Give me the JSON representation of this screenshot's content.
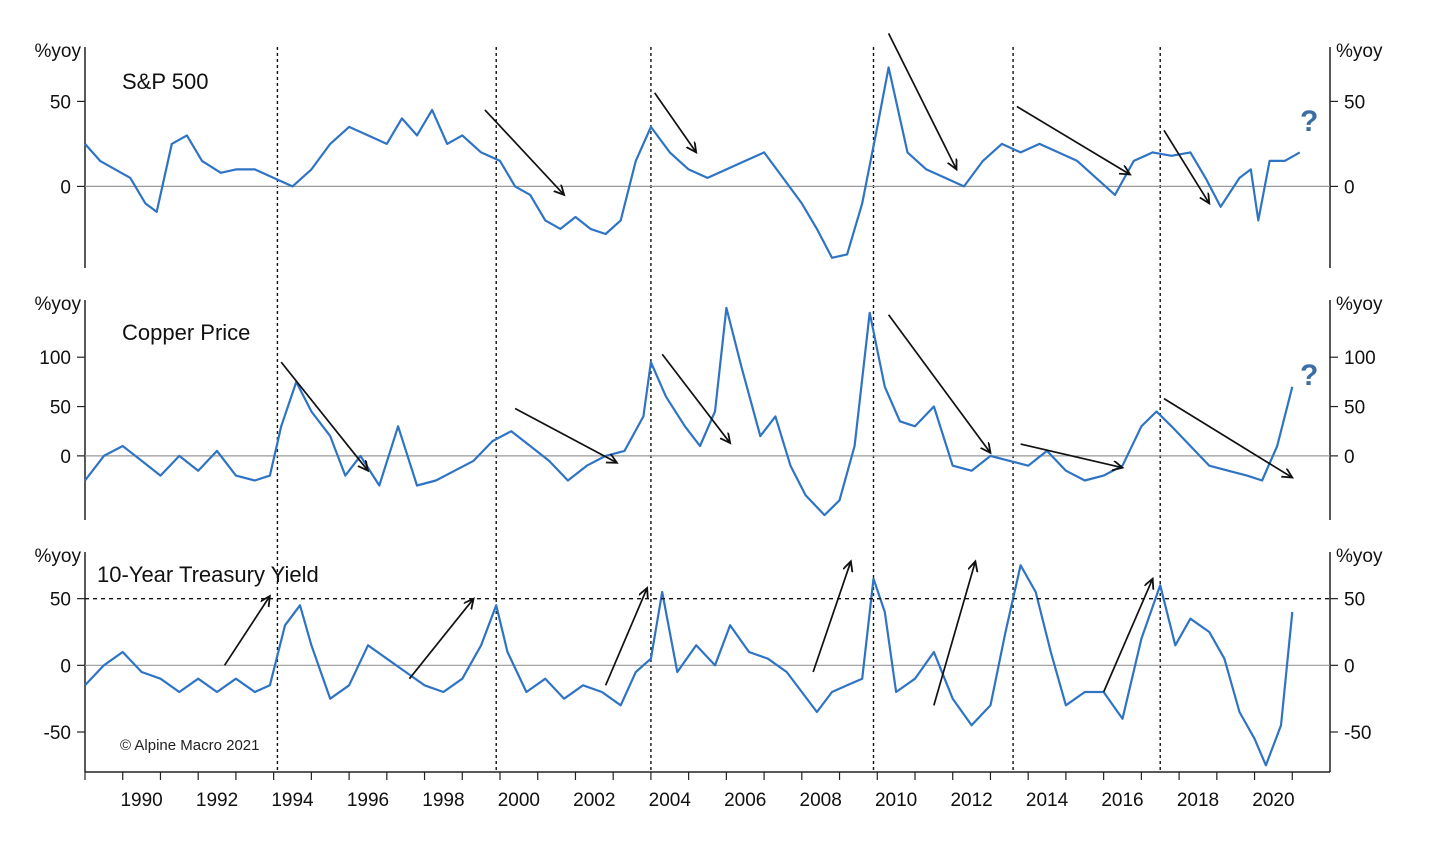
{
  "colors": {
    "series": "#2f74c4",
    "arrow": "#111111",
    "guide": "#111111",
    "zero": "#999999",
    "qmark": "#3c6ea5"
  },
  "unit_label": "%yoy",
  "copyright": "© Alpine Macro 2021",
  "question_mark": "?",
  "x_ticks": [
    "1990",
    "1992",
    "1994",
    "1996",
    "1998",
    "2000",
    "2002",
    "2004",
    "2006",
    "2008",
    "2010",
    "2012",
    "2014",
    "2016",
    "2018",
    "2020"
  ],
  "vertical_guides": [
    1994.1,
    1999.9,
    2004.0,
    2009.9,
    2013.6,
    2017.5
  ],
  "chart_data": [
    {
      "type": "line",
      "title": "S&P 500",
      "ylabel": "%yoy",
      "ylim": [
        -48,
        82
      ],
      "yticks": [
        0,
        50
      ],
      "x": [
        1989.0,
        1989.4,
        1989.8,
        1990.2,
        1990.6,
        1990.9,
        1991.3,
        1991.7,
        1992.1,
        1992.6,
        1993.0,
        1993.5,
        1994.0,
        1994.5,
        1995.0,
        1995.5,
        1996.0,
        1996.5,
        1997.0,
        1997.4,
        1997.8,
        1998.2,
        1998.6,
        1999.0,
        1999.5,
        2000.0,
        2000.4,
        2000.8,
        2001.2,
        2001.6,
        2002.0,
        2002.4,
        2002.8,
        2003.2,
        2003.6,
        2004.0,
        2004.5,
        2005.0,
        2005.5,
        2006.0,
        2006.5,
        2007.0,
        2007.5,
        2008.0,
        2008.4,
        2008.8,
        2009.2,
        2009.6,
        2010.0,
        2010.3,
        2010.8,
        2011.3,
        2011.8,
        2012.3,
        2012.8,
        2013.3,
        2013.8,
        2014.3,
        2014.8,
        2015.3,
        2015.8,
        2016.3,
        2016.8,
        2017.3,
        2017.8,
        2018.3,
        2018.7,
        2019.1,
        2019.6,
        2019.9,
        2020.1,
        2020.4,
        2020.8,
        2021.2
      ],
      "values": [
        25,
        15,
        10,
        5,
        -10,
        -15,
        25,
        30,
        15,
        8,
        10,
        10,
        5,
        0,
        10,
        25,
        35,
        30,
        25,
        40,
        30,
        45,
        25,
        30,
        20,
        15,
        0,
        -5,
        -20,
        -25,
        -18,
        -25,
        -28,
        -20,
        15,
        35,
        20,
        10,
        5,
        10,
        15,
        20,
        5,
        -10,
        -25,
        -42,
        -40,
        -10,
        35,
        70,
        20,
        10,
        5,
        0,
        15,
        25,
        20,
        25,
        20,
        15,
        5,
        -5,
        15,
        20,
        18,
        20,
        5,
        -12,
        5,
        10,
        -20,
        15,
        15,
        20
      ]
    },
    {
      "type": "line",
      "title": "Copper Price",
      "ylabel": "%yoy",
      "ylim": [
        -65,
        158
      ],
      "yticks": [
        0,
        50,
        100
      ],
      "x": [
        1989.0,
        1989.5,
        1990.0,
        1990.5,
        1991.0,
        1991.5,
        1992.0,
        1992.5,
        1993.0,
        1993.5,
        1993.9,
        1994.2,
        1994.6,
        1995.0,
        1995.5,
        1995.9,
        1996.3,
        1996.8,
        1997.3,
        1997.8,
        1998.3,
        1998.8,
        1999.3,
        1999.8,
        2000.3,
        2000.8,
        2001.3,
        2001.8,
        2002.3,
        2002.8,
        2003.3,
        2003.8,
        2004.0,
        2004.4,
        2004.9,
        2005.3,
        2005.7,
        2006.0,
        2006.4,
        2006.9,
        2007.3,
        2007.7,
        2008.1,
        2008.6,
        2009.0,
        2009.4,
        2009.8,
        2010.2,
        2010.6,
        2011.0,
        2011.5,
        2012.0,
        2012.5,
        2013.0,
        2013.5,
        2014.0,
        2014.5,
        2015.0,
        2015.5,
        2016.0,
        2016.5,
        2017.0,
        2017.4,
        2017.8,
        2018.3,
        2018.8,
        2019.3,
        2019.8,
        2020.2,
        2020.6,
        2021.0
      ],
      "values": [
        -25,
        0,
        10,
        -5,
        -20,
        0,
        -15,
        5,
        -20,
        -25,
        -20,
        30,
        75,
        45,
        20,
        -20,
        0,
        -30,
        30,
        -30,
        -25,
        -15,
        -5,
        15,
        25,
        10,
        -5,
        -25,
        -10,
        0,
        5,
        40,
        95,
        60,
        30,
        10,
        45,
        150,
        90,
        20,
        40,
        -10,
        -40,
        -60,
        -45,
        10,
        145,
        70,
        35,
        30,
        50,
        -10,
        -15,
        0,
        -5,
        -10,
        5,
        -15,
        -25,
        -20,
        -10,
        30,
        45,
        30,
        10,
        -10,
        -15,
        -20,
        -25,
        10,
        70
      ]
    },
    {
      "type": "line",
      "title": "10-Year Treasury Yield",
      "ylabel": "%yoy",
      "ylim": [
        -80,
        85
      ],
      "yticks": [
        -50,
        0,
        50
      ],
      "x": [
        1989.0,
        1989.5,
        1990.0,
        1990.5,
        1991.0,
        1991.5,
        1992.0,
        1992.5,
        1993.0,
        1993.5,
        1993.9,
        1994.3,
        1994.7,
        1995.0,
        1995.5,
        1996.0,
        1996.5,
        1997.0,
        1997.5,
        1998.0,
        1998.5,
        1999.0,
        1999.5,
        1999.9,
        2000.2,
        2000.7,
        2001.2,
        2001.7,
        2002.2,
        2002.7,
        2003.2,
        2003.6,
        2004.0,
        2004.3,
        2004.7,
        2005.2,
        2005.7,
        2006.1,
        2006.6,
        2007.1,
        2007.6,
        2008.0,
        2008.4,
        2008.8,
        2009.2,
        2009.6,
        2009.9,
        2010.2,
        2010.5,
        2011.0,
        2011.5,
        2012.0,
        2012.5,
        2013.0,
        2013.4,
        2013.8,
        2014.2,
        2014.6,
        2015.0,
        2015.5,
        2016.0,
        2016.5,
        2017.0,
        2017.5,
        2017.9,
        2018.3,
        2018.8,
        2019.2,
        2019.6,
        2020.0,
        2020.3,
        2020.7,
        2021.0
      ],
      "values": [
        -15,
        0,
        10,
        -5,
        -10,
        -20,
        -10,
        -20,
        -10,
        -20,
        -15,
        30,
        45,
        15,
        -25,
        -15,
        15,
        5,
        -5,
        -15,
        -20,
        -10,
        15,
        45,
        10,
        -20,
        -10,
        -25,
        -15,
        -20,
        -30,
        -5,
        5,
        55,
        -5,
        15,
        0,
        30,
        10,
        5,
        -5,
        -20,
        -35,
        -20,
        -15,
        -10,
        65,
        40,
        -20,
        -10,
        10,
        -25,
        -45,
        -30,
        25,
        75,
        55,
        10,
        -30,
        -20,
        -20,
        -40,
        20,
        60,
        15,
        35,
        25,
        5,
        -35,
        -55,
        -75,
        -45,
        40
      ]
    },
    {
      "type": "annotations",
      "dashed_reference_line_value": 50,
      "arrows": [
        {
          "panel": 0,
          "from": [
            1999.6,
            45
          ],
          "to": [
            2001.7,
            -5
          ]
        },
        {
          "panel": 0,
          "from": [
            2004.1,
            55
          ],
          "to": [
            2005.2,
            20
          ]
        },
        {
          "panel": 0,
          "from": [
            2010.3,
            90
          ],
          "to": [
            2012.1,
            10
          ]
        },
        {
          "panel": 0,
          "from": [
            2013.7,
            47
          ],
          "to": [
            2016.7,
            7
          ]
        },
        {
          "panel": 0,
          "from": [
            2017.6,
            33
          ],
          "to": [
            2018.8,
            -10
          ]
        },
        {
          "panel": 1,
          "from": [
            1994.2,
            95
          ],
          "to": [
            1996.5,
            -15
          ]
        },
        {
          "panel": 1,
          "from": [
            2000.4,
            48
          ],
          "to": [
            2003.1,
            -7
          ]
        },
        {
          "panel": 1,
          "from": [
            2004.3,
            103
          ],
          "to": [
            2006.1,
            13
          ]
        },
        {
          "panel": 1,
          "from": [
            2010.3,
            143
          ],
          "to": [
            2013.0,
            3
          ]
        },
        {
          "panel": 1,
          "from": [
            2013.8,
            12
          ],
          "to": [
            2016.5,
            -12
          ]
        },
        {
          "panel": 1,
          "from": [
            2017.6,
            58
          ],
          "to": [
            2021.0,
            -22
          ]
        },
        {
          "panel": 2,
          "from": [
            1992.7,
            0
          ],
          "to": [
            1993.9,
            52
          ]
        },
        {
          "panel": 2,
          "from": [
            1997.6,
            -10
          ],
          "to": [
            1999.3,
            50
          ]
        },
        {
          "panel": 2,
          "from": [
            2002.8,
            -15
          ],
          "to": [
            2003.9,
            58
          ]
        },
        {
          "panel": 2,
          "from": [
            2008.3,
            -5
          ],
          "to": [
            2009.3,
            78
          ]
        },
        {
          "panel": 2,
          "from": [
            2011.5,
            -30
          ],
          "to": [
            2012.6,
            78
          ]
        },
        {
          "panel": 2,
          "from": [
            2016.0,
            -20
          ],
          "to": [
            2017.3,
            65
          ]
        }
      ]
    }
  ]
}
